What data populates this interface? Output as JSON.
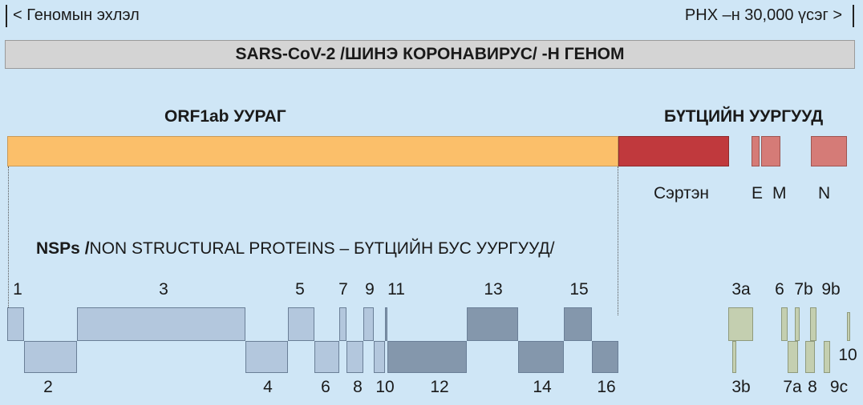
{
  "header": {
    "left_text": "< Геномын эхлэл",
    "right_text": "РНХ –н 30,000 үсэг >",
    "title": "SARS-CoV-2 /ШИНЭ КОРОНАВИРУС/ -Н ГЕНОМ"
  },
  "genome": {
    "orf1ab_label": "ORF1ab УУРАГ",
    "structural_label": "БҮТЦИЙН УУРГУУД",
    "spike_label": "Сэртэн",
    "e_label": "E",
    "m_label": "M",
    "n_label": "N"
  },
  "nsp": {
    "title_bold": "NSPs /",
    "title_rest": "NON STRUCTURAL PROTEINS – БҮТЦИЙН БУС УУРГУУД/",
    "top_numbers": [
      "1",
      "3",
      "5",
      "7",
      "9",
      "11",
      "13",
      "15"
    ],
    "bottom_numbers": [
      "2",
      "4",
      "6",
      "8",
      "10",
      "12",
      "14",
      "16"
    ]
  },
  "accessory": {
    "top_numbers": [
      "3a",
      "6",
      "7b",
      "9b"
    ],
    "bottom_numbers": [
      "3b",
      "7a",
      "8",
      "9c",
      "10"
    ]
  },
  "colors": {
    "background": "#cfe6f6",
    "orf1ab": "#fbbf6a",
    "spike": "#c0393d",
    "e_m_n": "#d57b77",
    "nsp_light": "#b3c7dd",
    "nsp_dark": "#8497ac",
    "accessory": "#c4cfb0"
  }
}
